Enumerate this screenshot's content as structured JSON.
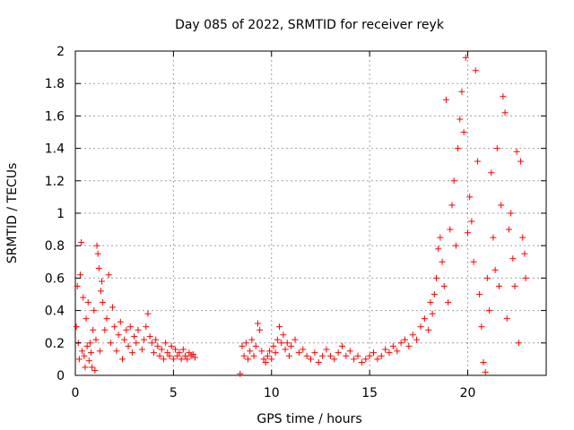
{
  "chart_data": {
    "type": "scatter",
    "title": "Day 085 of 2022, SRMTID for receiver reyk",
    "xlabel": "GPS time / hours",
    "ylabel": "SRMTID / TECUs",
    "xlim": [
      0,
      24
    ],
    "ylim": [
      0,
      2
    ],
    "xticks": [
      0,
      5,
      10,
      15,
      20
    ],
    "xtick_labels": [
      "0",
      "5",
      "10",
      "15",
      "20"
    ],
    "yticks": [
      0,
      0.2,
      0.4,
      0.6,
      0.8,
      1,
      1.2,
      1.4,
      1.6,
      1.8,
      2
    ],
    "ytick_labels": [
      "0",
      "0.2",
      "0.4",
      "0.6",
      "0.8",
      "1",
      "1.2",
      "1.4",
      "1.6",
      "1.8",
      "2"
    ],
    "grid": true,
    "marker": "+",
    "color": "#ff0000",
    "series": [
      {
        "name": "SRMTID",
        "points": [
          [
            0.05,
            0.3
          ],
          [
            0.1,
            0.55
          ],
          [
            0.15,
            0.2
          ],
          [
            0.2,
            0.1
          ],
          [
            0.25,
            0.62
          ],
          [
            0.3,
            0.82
          ],
          [
            0.35,
            0.15
          ],
          [
            0.4,
            0.48
          ],
          [
            0.45,
            0.12
          ],
          [
            0.5,
            0.05
          ],
          [
            0.55,
            0.35
          ],
          [
            0.6,
            0.18
          ],
          [
            0.65,
            0.45
          ],
          [
            0.7,
            0.09
          ],
          [
            0.75,
            0.2
          ],
          [
            0.8,
            0.14
          ],
          [
            0.85,
            0.05
          ],
          [
            0.9,
            0.28
          ],
          [
            0.95,
            0.4
          ],
          [
            1.0,
            0.03
          ],
          [
            1.05,
            0.22
          ],
          [
            1.1,
            0.8
          ],
          [
            1.15,
            0.75
          ],
          [
            1.2,
            0.66
          ],
          [
            1.25,
            0.15
          ],
          [
            1.3,
            0.52
          ],
          [
            1.35,
            0.58
          ],
          [
            1.4,
            0.45
          ],
          [
            1.5,
            0.28
          ],
          [
            1.6,
            0.35
          ],
          [
            1.7,
            0.62
          ],
          [
            1.8,
            0.2
          ],
          [
            1.9,
            0.42
          ],
          [
            2.0,
            0.3
          ],
          [
            2.1,
            0.15
          ],
          [
            2.2,
            0.25
          ],
          [
            2.3,
            0.33
          ],
          [
            2.4,
            0.1
          ],
          [
            2.5,
            0.22
          ],
          [
            2.6,
            0.28
          ],
          [
            2.7,
            0.18
          ],
          [
            2.8,
            0.3
          ],
          [
            2.9,
            0.14
          ],
          [
            3.0,
            0.24
          ],
          [
            3.1,
            0.2
          ],
          [
            3.2,
            0.28
          ],
          [
            3.4,
            0.16
          ],
          [
            3.5,
            0.22
          ],
          [
            3.6,
            0.3
          ],
          [
            3.7,
            0.38
          ],
          [
            3.8,
            0.24
          ],
          [
            3.9,
            0.2
          ],
          [
            4.0,
            0.14
          ],
          [
            4.1,
            0.22
          ],
          [
            4.2,
            0.18
          ],
          [
            4.3,
            0.12
          ],
          [
            4.4,
            0.16
          ],
          [
            4.5,
            0.1
          ],
          [
            4.6,
            0.2
          ],
          [
            4.7,
            0.14
          ],
          [
            4.8,
            0.12
          ],
          [
            4.9,
            0.18
          ],
          [
            5.0,
            0.1
          ],
          [
            5.1,
            0.16
          ],
          [
            5.2,
            0.12
          ],
          [
            5.3,
            0.14
          ],
          [
            5.4,
            0.1
          ],
          [
            5.5,
            0.16
          ],
          [
            5.6,
            0.12
          ],
          [
            5.7,
            0.1
          ],
          [
            5.8,
            0.14
          ],
          [
            5.9,
            0.12
          ],
          [
            6.0,
            0.13
          ],
          [
            6.1,
            0.11
          ],
          [
            8.4,
            0.01
          ],
          [
            8.5,
            0.18
          ],
          [
            8.6,
            0.12
          ],
          [
            8.7,
            0.2
          ],
          [
            8.8,
            0.1
          ],
          [
            8.9,
            0.15
          ],
          [
            9.0,
            0.22
          ],
          [
            9.1,
            0.12
          ],
          [
            9.2,
            0.18
          ],
          [
            9.3,
            0.32
          ],
          [
            9.4,
            0.28
          ],
          [
            9.5,
            0.15
          ],
          [
            9.6,
            0.1
          ],
          [
            9.7,
            0.08
          ],
          [
            9.8,
            0.12
          ],
          [
            9.9,
            0.15
          ],
          [
            10.0,
            0.1
          ],
          [
            10.1,
            0.18
          ],
          [
            10.2,
            0.14
          ],
          [
            10.3,
            0.22
          ],
          [
            10.4,
            0.3
          ],
          [
            10.5,
            0.2
          ],
          [
            10.6,
            0.25
          ],
          [
            10.7,
            0.16
          ],
          [
            10.8,
            0.2
          ],
          [
            10.9,
            0.12
          ],
          [
            11.0,
            0.18
          ],
          [
            11.2,
            0.22
          ],
          [
            11.4,
            0.14
          ],
          [
            11.6,
            0.16
          ],
          [
            11.8,
            0.12
          ],
          [
            12.0,
            0.1
          ],
          [
            12.2,
            0.14
          ],
          [
            12.4,
            0.08
          ],
          [
            12.6,
            0.12
          ],
          [
            12.8,
            0.16
          ],
          [
            13.0,
            0.12
          ],
          [
            13.2,
            0.1
          ],
          [
            13.4,
            0.14
          ],
          [
            13.6,
            0.18
          ],
          [
            13.8,
            0.12
          ],
          [
            14.0,
            0.15
          ],
          [
            14.2,
            0.1
          ],
          [
            14.4,
            0.12
          ],
          [
            14.6,
            0.08
          ],
          [
            14.8,
            0.1
          ],
          [
            15.0,
            0.12
          ],
          [
            15.2,
            0.14
          ],
          [
            15.4,
            0.1
          ],
          [
            15.6,
            0.12
          ],
          [
            15.8,
            0.16
          ],
          [
            16.0,
            0.14
          ],
          [
            16.2,
            0.18
          ],
          [
            16.4,
            0.15
          ],
          [
            16.6,
            0.2
          ],
          [
            16.8,
            0.22
          ],
          [
            17.0,
            0.18
          ],
          [
            17.2,
            0.25
          ],
          [
            17.4,
            0.22
          ],
          [
            17.6,
            0.3
          ],
          [
            17.8,
            0.35
          ],
          [
            18.0,
            0.28
          ],
          [
            18.1,
            0.45
          ],
          [
            18.2,
            0.38
          ],
          [
            18.3,
            0.5
          ],
          [
            18.4,
            0.6
          ],
          [
            18.5,
            0.78
          ],
          [
            18.6,
            0.85
          ],
          [
            18.7,
            0.7
          ],
          [
            18.8,
            0.55
          ],
          [
            18.9,
            1.7
          ],
          [
            19.0,
            0.45
          ],
          [
            19.1,
            0.9
          ],
          [
            19.2,
            1.05
          ],
          [
            19.3,
            1.2
          ],
          [
            19.4,
            0.8
          ],
          [
            19.5,
            1.4
          ],
          [
            19.6,
            1.58
          ],
          [
            19.7,
            1.75
          ],
          [
            19.8,
            1.5
          ],
          [
            19.9,
            1.96
          ],
          [
            20.0,
            0.88
          ],
          [
            20.1,
            1.1
          ],
          [
            20.2,
            0.95
          ],
          [
            20.3,
            0.7
          ],
          [
            20.4,
            1.88
          ],
          [
            20.5,
            1.32
          ],
          [
            20.6,
            0.5
          ],
          [
            20.7,
            0.3
          ],
          [
            20.8,
            0.08
          ],
          [
            20.9,
            0.02
          ],
          [
            21.0,
            0.6
          ],
          [
            21.1,
            0.4
          ],
          [
            21.2,
            1.25
          ],
          [
            21.3,
            0.85
          ],
          [
            21.4,
            0.65
          ],
          [
            21.5,
            1.4
          ],
          [
            21.6,
            0.55
          ],
          [
            21.7,
            1.05
          ],
          [
            21.8,
            1.72
          ],
          [
            21.9,
            1.62
          ],
          [
            22.0,
            0.35
          ],
          [
            22.1,
            0.9
          ],
          [
            22.2,
            1.0
          ],
          [
            22.3,
            0.72
          ],
          [
            22.4,
            0.55
          ],
          [
            22.5,
            1.38
          ],
          [
            22.6,
            0.2
          ],
          [
            22.7,
            1.32
          ],
          [
            22.8,
            0.85
          ],
          [
            22.9,
            0.75
          ],
          [
            22.95,
            0.6
          ]
        ]
      }
    ]
  }
}
